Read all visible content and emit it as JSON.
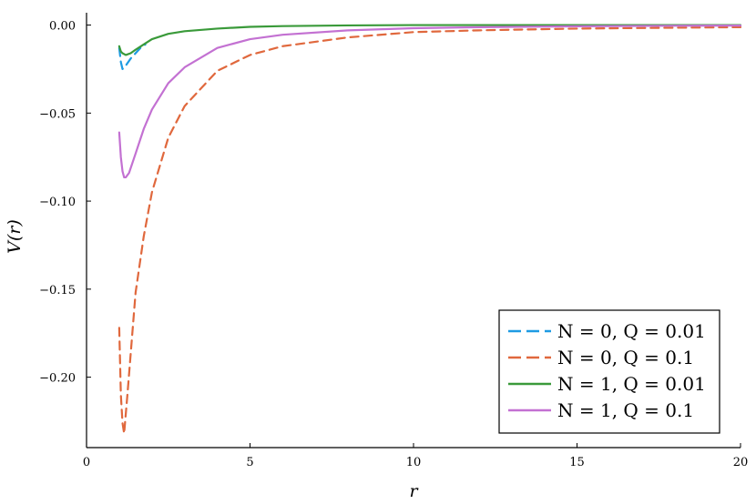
{
  "chart_data": {
    "type": "line",
    "xlabel": "r",
    "ylabel": "V(r)",
    "xlim": [
      0,
      20
    ],
    "ylim": [
      -0.24,
      0.007
    ],
    "grid": false,
    "legend_position": "bottom-right",
    "x_ticks": [
      0,
      5,
      10,
      15,
      20
    ],
    "x_tick_labels": [
      "0",
      "5",
      "10",
      "15",
      "20"
    ],
    "y_ticks": [
      0.0,
      -0.05,
      -0.1,
      -0.15,
      -0.2
    ],
    "y_tick_labels": [
      "0.00",
      "−0.05",
      "−0.10",
      "−0.15",
      "−0.20"
    ],
    "series": [
      {
        "name": "N = 0, Q = 0.01",
        "color": "#1e9be3",
        "dash": "dashed",
        "x": [
          1.0,
          1.05,
          1.1,
          1.2,
          1.35,
          1.5,
          1.65,
          1.8
        ],
        "y": [
          -0.013,
          -0.021,
          -0.025,
          -0.023,
          -0.019,
          -0.016,
          -0.013,
          -0.011
        ]
      },
      {
        "name": "N = 0, Q = 0.1",
        "color": "#e0683d",
        "dash": "dashed",
        "x": [
          1.0,
          1.05,
          1.1,
          1.15,
          1.25,
          1.5,
          1.75,
          2.0,
          2.5,
          3.0,
          4.0,
          5.0,
          6.0,
          8.0,
          10.0,
          12.0,
          15.0,
          18.0,
          20.0
        ],
        "y": [
          -0.172,
          -0.21,
          -0.226,
          -0.232,
          -0.21,
          -0.152,
          -0.12,
          -0.095,
          -0.064,
          -0.046,
          -0.026,
          -0.017,
          -0.012,
          -0.007,
          -0.004,
          -0.003,
          -0.002,
          -0.0015,
          -0.0012
        ]
      },
      {
        "name": "N = 1, Q = 0.01",
        "color": "#3a9a3a",
        "dash": "solid",
        "x": [
          1.0,
          1.05,
          1.1,
          1.2,
          1.35,
          1.5,
          1.75,
          2.0,
          2.5,
          3.0,
          4.0,
          5.0,
          6.0,
          8.0,
          10.0,
          12.0,
          15.0,
          18.0,
          20.0
        ],
        "y": [
          -0.012,
          -0.015,
          -0.016,
          -0.017,
          -0.016,
          -0.014,
          -0.011,
          -0.008,
          -0.005,
          -0.0035,
          -0.002,
          -0.001,
          -0.0006,
          -0.0002,
          0.0,
          0.0,
          0.0,
          0.0,
          0.0
        ]
      },
      {
        "name": "N = 1, Q = 0.1",
        "color": "#c371d2",
        "dash": "solid",
        "x": [
          1.0,
          1.05,
          1.1,
          1.15,
          1.2,
          1.3,
          1.5,
          1.75,
          2.0,
          2.5,
          3.0,
          4.0,
          5.0,
          6.0,
          8.0,
          10.0,
          12.0,
          15.0,
          18.0,
          20.0
        ],
        "y": [
          -0.061,
          -0.075,
          -0.083,
          -0.0865,
          -0.0865,
          -0.084,
          -0.073,
          -0.059,
          -0.048,
          -0.033,
          -0.024,
          -0.013,
          -0.008,
          -0.0055,
          -0.003,
          -0.0018,
          -0.0012,
          -0.0007,
          -0.0004,
          -0.0003
        ]
      }
    ]
  }
}
